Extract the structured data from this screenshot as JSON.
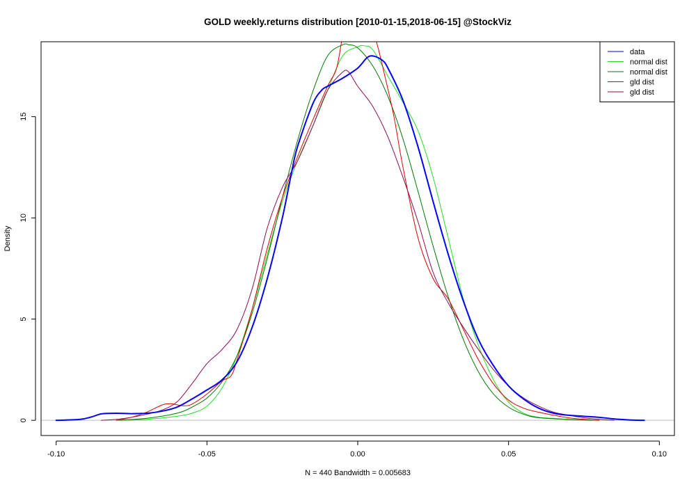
{
  "chart_data": {
    "type": "line",
    "title": "GOLD weekly.returns distribution [2010-01-15,2018-06-15] @StockViz",
    "xlabel": "N = 440   Bandwidth = 0.005683",
    "ylabel": "Density",
    "xlim": [
      -0.105,
      0.105
    ],
    "ylim": [
      -0.75,
      18.7
    ],
    "x_ticks": [
      -0.1,
      -0.05,
      0.0,
      0.05,
      0.1
    ],
    "x_tick_labels": [
      "-0.10",
      "-0.05",
      "0.00",
      "0.05",
      "0.10"
    ],
    "y_ticks": [
      0,
      5,
      10,
      15
    ],
    "y_tick_labels": [
      "0",
      "5",
      "10",
      "15"
    ],
    "baseline": 0,
    "legend_position": "top-right",
    "series": [
      {
        "name": "data",
        "color": "#0000ff",
        "width": 2,
        "x": [
          -0.1,
          -0.092,
          -0.088,
          -0.085,
          -0.08,
          -0.075,
          -0.07,
          -0.065,
          -0.06,
          -0.055,
          -0.05,
          -0.045,
          -0.04,
          -0.035,
          -0.03,
          -0.025,
          -0.022,
          -0.02,
          -0.015,
          -0.012,
          -0.01,
          -0.005,
          0.0,
          0.003,
          0.005,
          0.008,
          0.01,
          0.015,
          0.02,
          0.025,
          0.03,
          0.035,
          0.04,
          0.045,
          0.05,
          0.055,
          0.06,
          0.065,
          0.07,
          0.075,
          0.08,
          0.085,
          0.09,
          0.095
        ],
        "y": [
          0.0,
          0.05,
          0.18,
          0.32,
          0.35,
          0.33,
          0.35,
          0.45,
          0.65,
          1.05,
          1.5,
          2.0,
          2.9,
          4.6,
          7.0,
          10.0,
          12.2,
          13.5,
          15.6,
          16.3,
          16.5,
          16.9,
          17.4,
          17.9,
          18.0,
          17.8,
          17.4,
          15.8,
          13.5,
          10.8,
          8.2,
          5.9,
          4.0,
          2.7,
          1.7,
          1.05,
          0.6,
          0.35,
          0.25,
          0.2,
          0.15,
          0.07,
          0.02,
          0.0
        ]
      },
      {
        "name": "normal dist",
        "color": "#22dd22",
        "width": 1,
        "x": [
          -0.08,
          -0.07,
          -0.06,
          -0.055,
          -0.05,
          -0.045,
          -0.04,
          -0.035,
          -0.03,
          -0.025,
          -0.02,
          -0.015,
          -0.01,
          -0.005,
          0.0,
          0.002,
          0.005,
          0.01,
          0.015,
          0.02,
          0.025,
          0.03,
          0.035,
          0.04,
          0.045,
          0.05,
          0.055,
          0.06,
          0.065,
          0.07,
          0.08
        ],
        "y": [
          0.0,
          0.05,
          0.2,
          0.35,
          0.7,
          1.6,
          3.2,
          5.5,
          8.2,
          10.8,
          12.8,
          14.5,
          16.3,
          18.0,
          18.45,
          18.5,
          18.3,
          17.0,
          15.7,
          14.3,
          12.0,
          9.0,
          6.0,
          3.7,
          2.0,
          0.9,
          0.35,
          0.15,
          0.1,
          0.05,
          0.0
        ]
      },
      {
        "name": "normal dist",
        "color": "#007700",
        "width": 1,
        "x": [
          -0.08,
          -0.07,
          -0.06,
          -0.055,
          -0.05,
          -0.045,
          -0.04,
          -0.035,
          -0.03,
          -0.025,
          -0.02,
          -0.015,
          -0.01,
          -0.005,
          -0.003,
          0.0,
          0.005,
          0.01,
          0.015,
          0.02,
          0.025,
          0.03,
          0.035,
          0.04,
          0.045,
          0.05,
          0.055,
          0.06,
          0.07,
          0.08
        ],
        "y": [
          0.0,
          0.1,
          0.35,
          0.65,
          1.1,
          1.9,
          3.2,
          5.3,
          8.0,
          11.0,
          13.8,
          16.2,
          18.0,
          18.55,
          18.55,
          18.4,
          17.5,
          16.0,
          13.9,
          11.3,
          8.6,
          6.1,
          4.0,
          2.4,
          1.3,
          0.65,
          0.3,
          0.13,
          0.04,
          0.0
        ]
      },
      {
        "name": "gld dist",
        "color": "#dd0000",
        "width": 1,
        "x": [
          -0.08,
          -0.075,
          -0.07,
          -0.065,
          -0.062,
          -0.058,
          -0.055,
          -0.05,
          -0.045,
          -0.042,
          -0.04,
          -0.035,
          -0.03,
          -0.025,
          -0.02,
          -0.015,
          -0.01,
          -0.007,
          -0.005,
          -0.003,
          0.0,
          0.003,
          0.006,
          0.009,
          0.012,
          0.015,
          0.02,
          0.025,
          0.03,
          0.035,
          0.04,
          0.045,
          0.05,
          0.055,
          0.06,
          0.065,
          0.07,
          0.075,
          0.08
        ],
        "y": [
          0.0,
          0.15,
          0.4,
          0.75,
          0.82,
          0.72,
          0.8,
          1.3,
          1.95,
          2.2,
          3.0,
          5.5,
          8.5,
          11.0,
          13.0,
          14.8,
          16.5,
          17.4,
          19.0,
          20.0,
          20.0,
          20.0,
          18.8,
          17.0,
          15.0,
          12.5,
          9.0,
          7.0,
          6.0,
          4.5,
          3.0,
          1.8,
          1.0,
          0.6,
          0.4,
          0.25,
          0.12,
          0.05,
          0.0
        ]
      },
      {
        "name": "gld dist",
        "color": "#8b0a50",
        "width": 1,
        "x": [
          -0.085,
          -0.08,
          -0.075,
          -0.07,
          -0.065,
          -0.06,
          -0.055,
          -0.05,
          -0.045,
          -0.04,
          -0.035,
          -0.03,
          -0.025,
          -0.02,
          -0.015,
          -0.01,
          -0.005,
          -0.003,
          0.0,
          0.005,
          0.01,
          0.015,
          0.02,
          0.025,
          0.03,
          0.035,
          0.04,
          0.045,
          0.05,
          0.055,
          0.06,
          0.065,
          0.07,
          0.075,
          0.08,
          0.085
        ],
        "y": [
          0.0,
          0.05,
          0.15,
          0.3,
          0.5,
          0.9,
          1.8,
          2.8,
          3.5,
          4.5,
          6.5,
          9.5,
          11.5,
          12.8,
          14.5,
          16.3,
          17.2,
          17.2,
          16.5,
          15.5,
          14.0,
          12.0,
          9.8,
          7.3,
          5.8,
          4.6,
          3.5,
          2.5,
          1.7,
          1.1,
          0.7,
          0.4,
          0.25,
          0.12,
          0.05,
          0.0
        ]
      }
    ]
  }
}
